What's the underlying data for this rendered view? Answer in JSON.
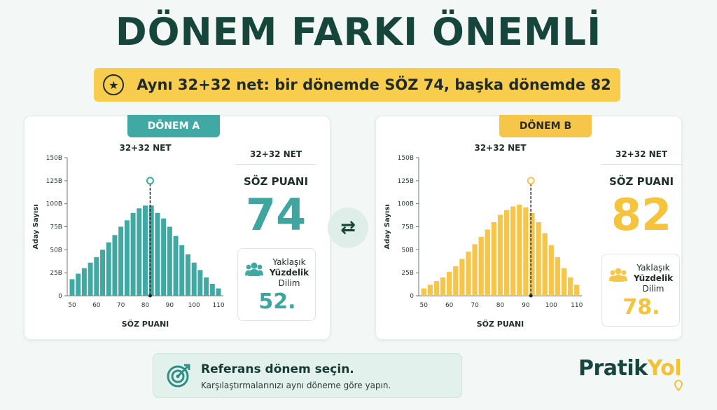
{
  "title": "DÖNEM FARKI ÖNEMLİ",
  "banner": {
    "icon": "star-icon",
    "text": "Aynı 32+32 net: bir dönemde SÖZ 74, başka dönemde 82"
  },
  "colors": {
    "teal": "#41a9a3",
    "yellow": "#f6c64a",
    "dark_green": "#16453b"
  },
  "panel_a": {
    "tab": "DÖNEM A",
    "chart_title": "32+32 NET",
    "side_label": "32+32 NET",
    "score_label": "SÖZ PUANI",
    "score_value": "74",
    "percentile_label_1": "Yaklaşık",
    "percentile_label_2": "Yüzdelik",
    "percentile_label_3": "Dilim",
    "percentile_value": "52."
  },
  "panel_b": {
    "tab": "DÖNEM B",
    "chart_title": "32+32 NET",
    "side_label": "32+32 NET",
    "score_label": "SÖZ PUANI",
    "score_value": "82",
    "percentile_label_1": "Yaklaşık",
    "percentile_label_2": "Yüzdelik",
    "percentile_label_3": "Dilim",
    "percentile_value": "78."
  },
  "chart_data": [
    {
      "type": "bar",
      "title": "32+32 NET",
      "xlabel": "SÖZ PUANI",
      "ylabel": "Aday Sayısı",
      "x_ticks": [
        50,
        60,
        70,
        80,
        90,
        100,
        110
      ],
      "y_ticks": [
        "0",
        "25B",
        "50B",
        "75B",
        "100B",
        "125B",
        "150B"
      ],
      "xlim": [
        48,
        112
      ],
      "ylim": [
        0,
        150
      ],
      "bar_x": [
        50,
        52.5,
        55,
        57.5,
        60,
        62.5,
        65,
        67.5,
        70,
        72.5,
        75,
        77.5,
        80,
        82.5,
        85,
        87.5,
        90,
        92.5,
        95,
        97.5,
        100,
        102.5,
        105,
        107.5,
        110
      ],
      "values": [
        18,
        24,
        30,
        36,
        42,
        50,
        58,
        66,
        75,
        82,
        90,
        95,
        98,
        98,
        90,
        84,
        75,
        65,
        55,
        45,
        36,
        28,
        20,
        13,
        8
      ],
      "marker_x": 82,
      "color": "#41a9a3",
      "grid": false
    },
    {
      "type": "bar",
      "title": "32+32 NET",
      "xlabel": "SÖZ PUANI",
      "ylabel": "Aday Sayısı",
      "x_ticks": [
        50,
        60,
        70,
        80,
        90,
        100,
        110
      ],
      "y_ticks": [
        "0",
        "25B",
        "50B",
        "75B",
        "100B",
        "125B",
        "150B"
      ],
      "xlim": [
        48,
        112
      ],
      "ylim": [
        0,
        150
      ],
      "bar_x": [
        50,
        52.5,
        55,
        57.5,
        60,
        62.5,
        65,
        67.5,
        70,
        72.5,
        75,
        77.5,
        80,
        82.5,
        85,
        87.5,
        90,
        92.5,
        95,
        97.5,
        100,
        102.5,
        105,
        107.5,
        110
      ],
      "values": [
        8,
        12,
        16,
        20,
        26,
        32,
        40,
        48,
        56,
        64,
        72,
        80,
        88,
        93,
        97,
        99,
        96,
        90,
        80,
        68,
        55,
        42,
        30,
        20,
        12
      ],
      "marker_x": 92,
      "color": "#f6c64a",
      "grid": false
    }
  ],
  "reference": {
    "icon": "target-icon",
    "title": "Referans dönem seçin.",
    "subtitle": "Karşılaştırmalarınızı aynı döneme göre yapın."
  },
  "logo": {
    "part1": "Pratik",
    "part2": "Yol",
    "icon": "map-pin-icon"
  },
  "swap_icon": "swap-arrows-icon"
}
